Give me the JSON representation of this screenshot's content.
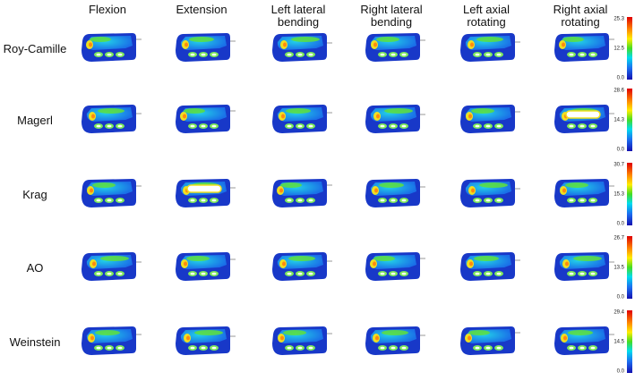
{
  "columns": [
    "Flexion",
    "Extension",
    "Left lateral bending",
    "Right lateral bending",
    "Left axial rotating",
    "Right axial rotating"
  ],
  "rows": [
    {
      "label": "Roy-Camille",
      "scale": [
        "25.3",
        "12.5",
        "0.0"
      ]
    },
    {
      "label": "Magerl",
      "scale": [
        "28.6",
        "14.3",
        "0.0"
      ]
    },
    {
      "label": "Krag",
      "scale": [
        "30.7",
        "15.3",
        "0.0"
      ]
    },
    {
      "label": "AO",
      "scale": [
        "26.7",
        "13.5",
        "0.0"
      ]
    },
    {
      "label": "Weinstein",
      "scale": [
        "29.4",
        "14.5",
        "0.0"
      ]
    }
  ]
}
